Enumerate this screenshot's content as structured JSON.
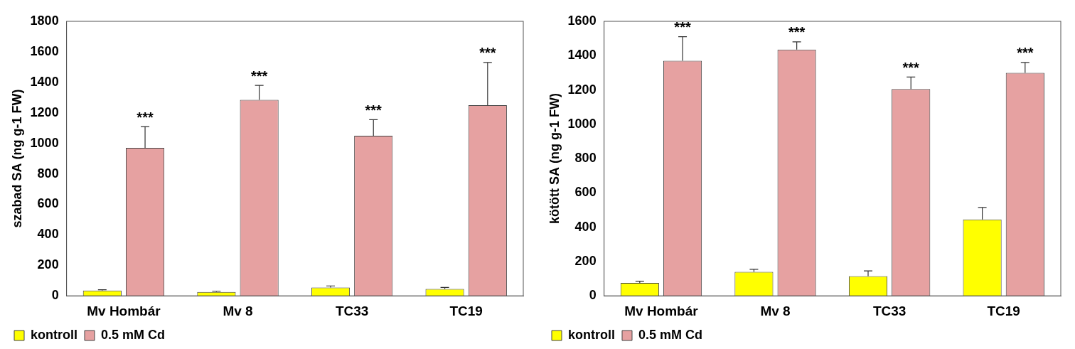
{
  "chart_data": [
    {
      "type": "bar",
      "y_label": "szabad SA (ng g-1 FW)",
      "categories": [
        "Mv Hombár",
        "Mv 8",
        "TC33",
        "TC19"
      ],
      "series": [
        {
          "name": "kontroll",
          "color": "#ffff00",
          "values": [
            35,
            25,
            55,
            45
          ],
          "errors": [
            5,
            5,
            10,
            10
          ]
        },
        {
          "name": "0.5 mM Cd",
          "color": "#e6a1a1",
          "values": [
            970,
            1285,
            1050,
            1250
          ],
          "errors": [
            140,
            95,
            105,
            280
          ],
          "significance": [
            "***",
            "***",
            "***",
            "***"
          ]
        }
      ],
      "ylim": [
        0,
        1800
      ],
      "yticks": [
        0,
        200,
        400,
        600,
        800,
        1000,
        1200,
        1400,
        1600,
        1800
      ],
      "grid": false,
      "legend": "bottom"
    },
    {
      "type": "bar",
      "y_label": "kötött SA (ng g-1 FW)",
      "categories": [
        "Mv Hombár",
        "Mv 8",
        "TC33",
        "TC19"
      ],
      "series": [
        {
          "name": "kontroll",
          "color": "#ffff00",
          "values": [
            75,
            140,
            115,
            445
          ],
          "errors": [
            10,
            15,
            30,
            70
          ]
        },
        {
          "name": "0.5 mM Cd",
          "color": "#e6a1a1",
          "values": [
            1370,
            1435,
            1205,
            1300
          ],
          "errors": [
            140,
            45,
            70,
            60
          ],
          "significance": [
            "***",
            "***",
            "***",
            "***"
          ]
        }
      ],
      "ylim": [
        0,
        1600
      ],
      "yticks": [
        0,
        200,
        400,
        600,
        800,
        1000,
        1200,
        1400,
        1600
      ],
      "grid": false,
      "legend": "bottom"
    }
  ]
}
